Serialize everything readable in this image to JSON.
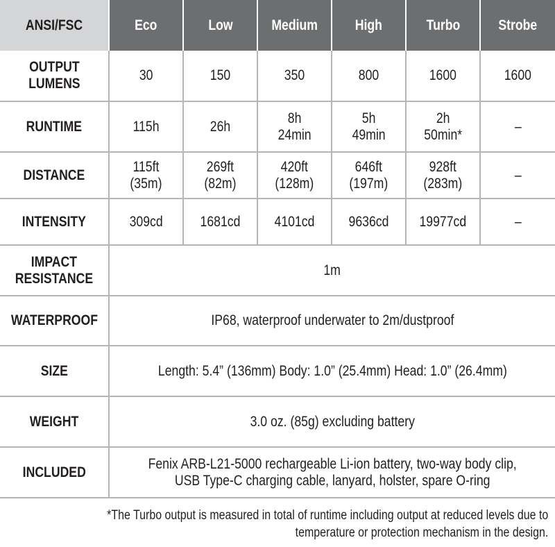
{
  "header": {
    "corner": "ANSI/FSC",
    "modes": [
      "Eco",
      "Low",
      "Medium",
      "High",
      "Turbo",
      "Strobe"
    ]
  },
  "rows": [
    {
      "label": "OUTPUT\nLUMENS",
      "cells": [
        "30",
        "150",
        "350",
        "800",
        "1600",
        "1600"
      ]
    },
    {
      "label": "RUNTIME",
      "cells": [
        "115h",
        "26h",
        "8h\n24min",
        "5h\n49min",
        "2h\n50min*",
        "–"
      ]
    },
    {
      "label": "DISTANCE",
      "cells": [
        "115ft\n(35m)",
        "269ft\n(82m)",
        "420ft\n(128m)",
        "646ft\n(197m)",
        "928ft\n(283m)",
        "–"
      ]
    },
    {
      "label": "INTENSITY",
      "cells": [
        "309cd",
        "1681cd",
        "4101cd",
        "9636cd",
        "19977cd",
        "–"
      ]
    },
    {
      "label": "IMPACT\nRESISTANCE",
      "value": "1m"
    },
    {
      "label": "WATERPROOF",
      "value": "IP68, waterproof underwater to 2m/dustproof"
    },
    {
      "label": "SIZE",
      "value": "Length: 5.4” (136mm)  Body: 1.0” (25.4mm) Head: 1.0” (26.4mm)"
    },
    {
      "label": "WEIGHT",
      "value": "3.0 oz. (85g) excluding battery"
    },
    {
      "label": "INCLUDED",
      "value": "Fenix ARB-L21-5000 rechargeable Li-ion battery, two-way body clip,\nUSB Type-C charging cable, lanyard, holster, spare O-ring"
    }
  ],
  "footnote": "*The Turbo output is measured in total of runtime including output at reduced levels due to\ntemperature or protection mechanism in the design.",
  "colors": {
    "header_bg": "#6d6e70",
    "corner_bg": "#d4d5d6",
    "grid_line": "#b5b5b5"
  }
}
